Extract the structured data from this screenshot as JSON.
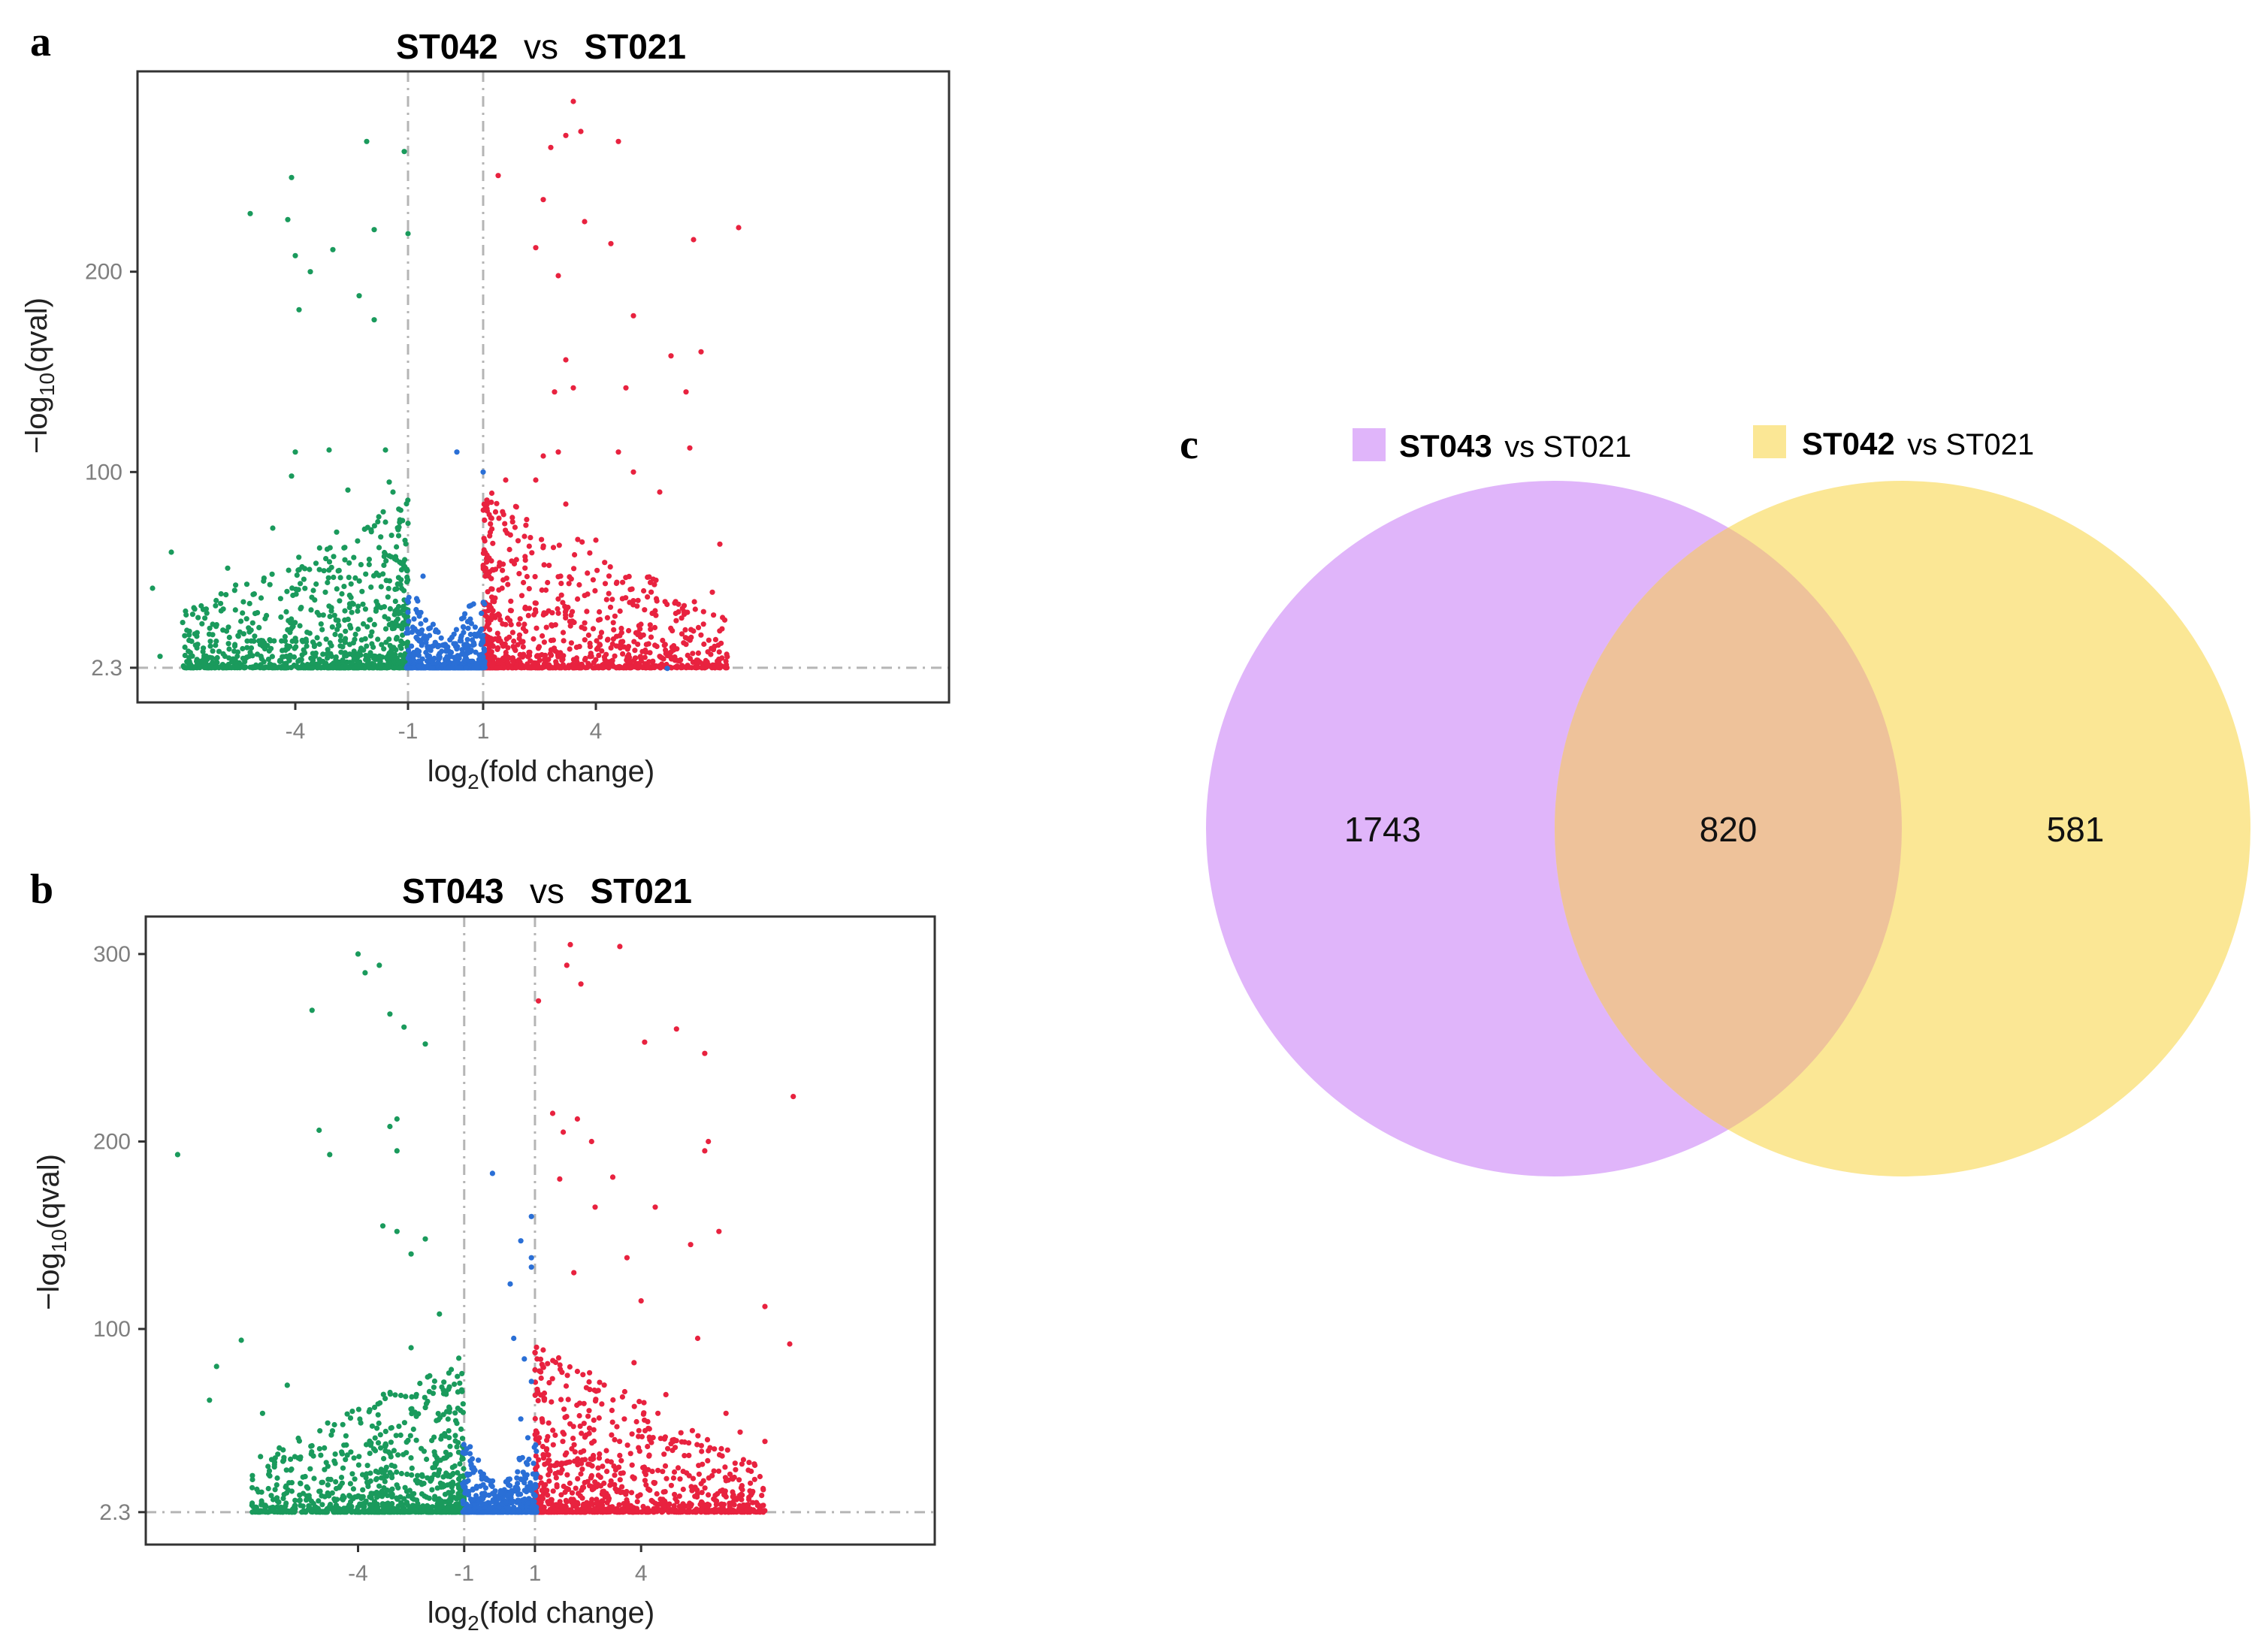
{
  "colors": {
    "up": "#e8223f",
    "down": "#1a9a5c",
    "ns": "#2a6fd6",
    "frame": "#333333",
    "guide": "#b5b5b5",
    "venn_purple": "#e0b5fa",
    "venn_yellow": "#fbe795",
    "venn_overlap": "#eec29a"
  },
  "chart_data": [
    {
      "type": "scatter",
      "panel": "a",
      "title": {
        "left": "ST042",
        "vs": "vs",
        "right": "ST021"
      },
      "xlabel": "log",
      "xlabel_sub": "2",
      "xlabel_rest": "(fold change)",
      "ylabel": "−log",
      "ylabel_sub": "10",
      "ylabel_rest": "(qval)",
      "xlim": [
        -8.2,
        13.4
      ],
      "ylim": [
        -15,
        300
      ],
      "xticks": [
        -4,
        -1,
        1,
        4
      ],
      "xtick_labels": [
        "-4",
        "-1",
        "1",
        "4"
      ],
      "yticks": [
        2.3,
        100,
        200
      ],
      "ytick_labels": [
        "2.3",
        "100",
        "200"
      ],
      "fc_threshold": [
        -1,
        1
      ],
      "q_threshold": 2.3,
      "series": [
        {
          "name": "up",
          "color_key": "up",
          "points": [
            [
              3.4,
              285
            ],
            [
              3.6,
              270
            ],
            [
              3.2,
              268
            ],
            [
              4.6,
              265
            ],
            [
              2.8,
              262
            ],
            [
              1.4,
              248
            ],
            [
              2.6,
              236
            ],
            [
              3.7,
              225
            ],
            [
              7.8,
              222
            ],
            [
              4.4,
              214
            ],
            [
              6.6,
              216
            ],
            [
              3.0,
              198
            ],
            [
              2.4,
              212
            ],
            [
              5.0,
              178
            ],
            [
              6.0,
              158
            ],
            [
              6.8,
              160
            ],
            [
              3.2,
              156
            ],
            [
              2.9,
              140
            ],
            [
              3.4,
              142
            ],
            [
              4.8,
              142
            ],
            [
              6.4,
              140
            ],
            [
              2.6,
              108
            ],
            [
              3.0,
              110
            ],
            [
              4.6,
              110
            ],
            [
              6.5,
              112
            ],
            [
              5.0,
              100
            ],
            [
              2.4,
              96
            ],
            [
              5.7,
              90
            ],
            [
              1.6,
              96
            ],
            [
              3.2,
              84
            ],
            [
              1.1,
              86
            ],
            [
              7.3,
              64
            ],
            [
              4.0,
              66
            ],
            [
              7.1,
              40
            ],
            [
              5.6,
              46
            ],
            [
              6.4,
              14
            ],
            [
              5.2,
              24
            ],
            [
              6.2,
              34
            ],
            [
              5.7,
              8
            ],
            [
              4.1,
              14
            ],
            [
              3.5,
              5
            ]
          ]
        },
        {
          "name": "down",
          "color_key": "down",
          "points": [
            [
              -2.1,
              265
            ],
            [
              -1.1,
              260
            ],
            [
              -4.1,
              247
            ],
            [
              -5.2,
              229
            ],
            [
              -4.2,
              226
            ],
            [
              -1.9,
              221
            ],
            [
              -1.0,
              219
            ],
            [
              -4.0,
              208
            ],
            [
              -3.0,
              211
            ],
            [
              -3.6,
              200
            ],
            [
              -2.3,
              188
            ],
            [
              -3.9,
              181
            ],
            [
              -1.9,
              176
            ],
            [
              -4.0,
              110
            ],
            [
              -3.1,
              111
            ],
            [
              -1.6,
              111
            ],
            [
              -4.1,
              98
            ],
            [
              -1.5,
              95
            ],
            [
              -1.4,
              90
            ],
            [
              -2.6,
              91
            ],
            [
              -1.6,
              75
            ],
            [
              -4.6,
              72
            ],
            [
              -2.9,
              70
            ],
            [
              -7.3,
              60
            ],
            [
              -5.8,
              52
            ],
            [
              -7.8,
              42
            ],
            [
              -3.2,
              40
            ],
            [
              -2.2,
              34
            ],
            [
              -6.2,
              24
            ],
            [
              -6.6,
              14
            ],
            [
              -7.6,
              8
            ],
            [
              -5.2,
              10
            ],
            [
              -6.4,
              6
            ]
          ]
        },
        {
          "name": "ns",
          "color_key": "ns",
          "points": [
            [
              0.3,
              110
            ],
            [
              1.0,
              100
            ],
            [
              -0.6,
              48
            ],
            [
              -1.0,
              30
            ],
            [
              0.6,
              22
            ],
            [
              5.9,
              2
            ]
          ]
        }
      ]
    },
    {
      "type": "scatter",
      "panel": "b",
      "title": {
        "left": "ST043",
        "vs": "vs",
        "right": "ST021"
      },
      "xlabel": "log",
      "xlabel_sub": "2",
      "xlabel_rest": "(fold change)",
      "ylabel": "−log",
      "ylabel_sub": "10",
      "ylabel_rest": "(qval)",
      "xlim": [
        -10.0,
        12.3
      ],
      "ylim": [
        -15,
        320
      ],
      "xticks": [
        -4,
        -1,
        1,
        4
      ],
      "xtick_labels": [
        "-4",
        "-1",
        "1",
        "4"
      ],
      "yticks": [
        2.3,
        100,
        200,
        300
      ],
      "ytick_labels": [
        "2.3",
        "100",
        "200",
        "300"
      ],
      "fc_threshold": [
        -1,
        1
      ],
      "q_threshold": 2.3,
      "series": [
        {
          "name": "up",
          "color_key": "up",
          "points": [
            [
              2.0,
              305
            ],
            [
              3.4,
              304
            ],
            [
              1.9,
              294
            ],
            [
              2.3,
              284
            ],
            [
              1.1,
              275
            ],
            [
              4.1,
              253
            ],
            [
              5.0,
              260
            ],
            [
              5.8,
              247
            ],
            [
              8.3,
              224
            ],
            [
              1.5,
              215
            ],
            [
              1.8,
              205
            ],
            [
              2.2,
              212
            ],
            [
              2.6,
              200
            ],
            [
              5.9,
              200
            ],
            [
              5.8,
              195
            ],
            [
              1.7,
              180
            ],
            [
              3.2,
              181
            ],
            [
              2.7,
              165
            ],
            [
              4.4,
              165
            ],
            [
              5.4,
              145
            ],
            [
              6.2,
              152
            ],
            [
              3.6,
              138
            ],
            [
              2.1,
              130
            ],
            [
              4.0,
              115
            ],
            [
              7.5,
              112
            ],
            [
              5.6,
              95
            ],
            [
              8.2,
              92
            ],
            [
              3.8,
              82
            ],
            [
              4.7,
              65
            ],
            [
              6.4,
              55
            ],
            [
              6.8,
              45
            ],
            [
              7.5,
              40
            ],
            [
              7.2,
              28
            ],
            [
              5.1,
              20
            ],
            [
              6.3,
              14
            ]
          ]
        },
        {
          "name": "down",
          "color_key": "down",
          "points": [
            [
              -4.0,
              300
            ],
            [
              -3.8,
              290
            ],
            [
              -3.4,
              294
            ],
            [
              -5.3,
              270
            ],
            [
              -3.1,
              268
            ],
            [
              -2.7,
              261
            ],
            [
              -2.1,
              252
            ],
            [
              -5.1,
              206
            ],
            [
              -3.1,
              208
            ],
            [
              -2.9,
              212
            ],
            [
              -4.8,
              193
            ],
            [
              -9.1,
              193
            ],
            [
              -2.9,
              195
            ],
            [
              -3.3,
              155
            ],
            [
              -2.9,
              152
            ],
            [
              -2.1,
              148
            ],
            [
              -2.5,
              140
            ],
            [
              -1.7,
              108
            ],
            [
              -7.3,
              94
            ],
            [
              -2.5,
              90
            ],
            [
              -8.0,
              80
            ],
            [
              -6.0,
              70
            ],
            [
              -8.2,
              62
            ],
            [
              -6.7,
              55
            ],
            [
              -4.4,
              38
            ],
            [
              -6.1,
              30
            ],
            [
              -6.4,
              9
            ],
            [
              -7.0,
              6
            ],
            [
              -5.2,
              5
            ]
          ]
        },
        {
          "name": "ns",
          "color_key": "ns",
          "points": [
            [
              -0.2,
              183
            ],
            [
              0.9,
              160
            ],
            [
              0.6,
              147
            ],
            [
              0.9,
              138
            ],
            [
              0.9,
              133
            ],
            [
              0.3,
              124
            ],
            [
              0.4,
              95
            ],
            [
              0.7,
              84
            ],
            [
              0.9,
              72
            ],
            [
              0.6,
              52
            ],
            [
              0.8,
              42
            ],
            [
              -0.6,
              30
            ],
            [
              -0.9,
              22
            ],
            [
              0.3,
              12
            ]
          ]
        }
      ]
    },
    {
      "type": "venn",
      "panel": "c",
      "sets": [
        {
          "name_strong": "ST043",
          "name_rest": "vs ST021",
          "color_key": "venn_purple",
          "only": 1743
        },
        {
          "name_strong": "ST042",
          "name_rest": "vs ST021",
          "color_key": "venn_yellow",
          "only": 581
        }
      ],
      "intersection": 820,
      "labels": {
        "left_only": "1743",
        "both": "820",
        "right_only": "581"
      }
    }
  ]
}
